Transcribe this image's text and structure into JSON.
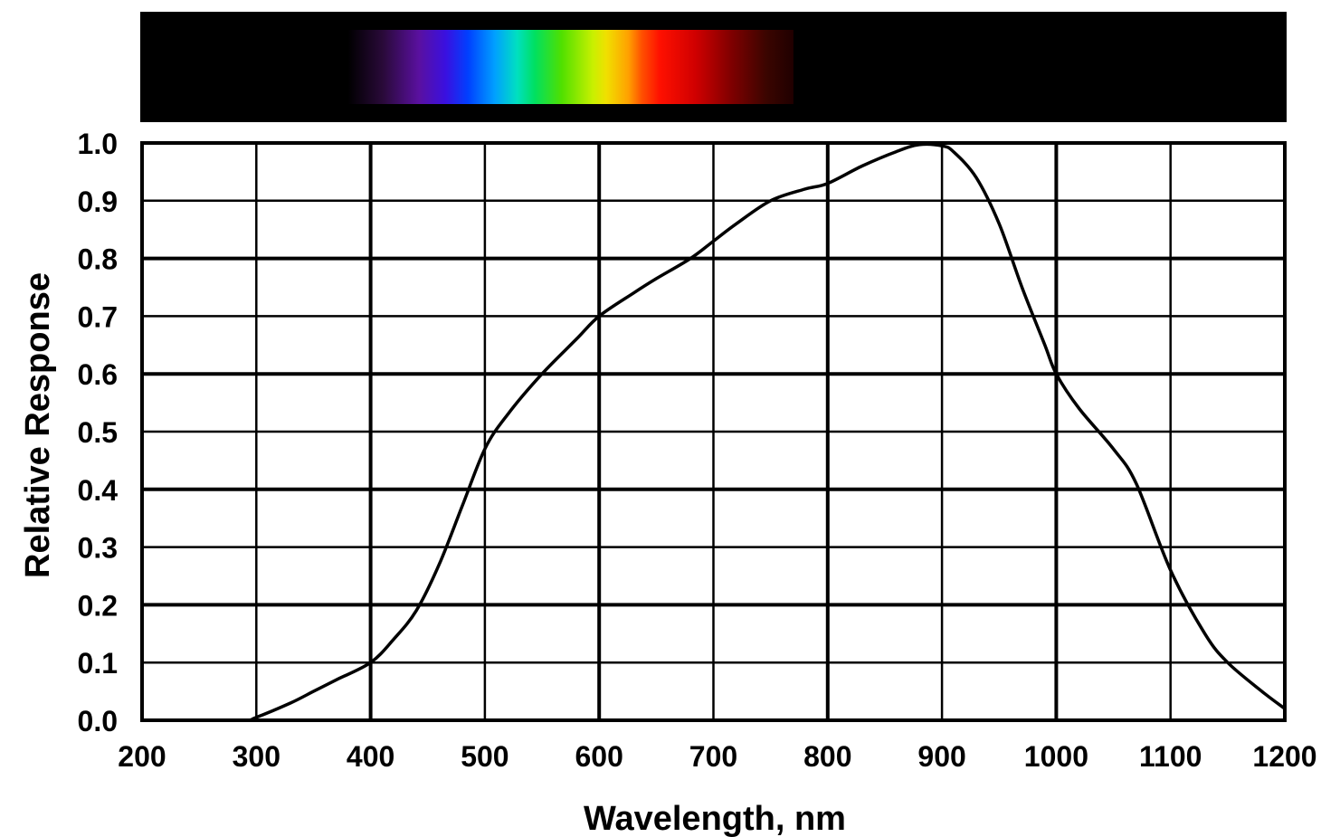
{
  "chart_data": {
    "type": "line",
    "title": "",
    "xlabel": "Wavelength, nm",
    "ylabel": "Relative Response",
    "xlim": [
      200,
      1200
    ],
    "ylim": [
      0.0,
      1.0
    ],
    "x_ticks": [
      200,
      300,
      400,
      500,
      600,
      700,
      800,
      900,
      1000,
      1100,
      1200
    ],
    "x_tick_labels": [
      "200",
      "300",
      "400",
      "500",
      "600",
      "700",
      "800",
      "900",
      "1000",
      "1100",
      "1200"
    ],
    "y_ticks": [
      0.0,
      0.1,
      0.2,
      0.3,
      0.4,
      0.5,
      0.6,
      0.7,
      0.8,
      0.9,
      1.0
    ],
    "y_tick_labels": [
      "0.0",
      "0.1",
      "0.2",
      "0.3",
      "0.4",
      "0.5",
      "0.6",
      "0.7",
      "0.8",
      "0.9",
      "1.0"
    ],
    "grid": true,
    "legend": "none",
    "line_color": "#000000",
    "grid_color": "#000000",
    "spectrum_band": {
      "background": "#000000",
      "spectrum_range_nm": [
        380,
        770
      ]
    },
    "series": [
      {
        "x": [
          200,
          250,
          290,
          300,
          330,
          350,
          370,
          400,
          420,
          440,
          460,
          480,
          500,
          520,
          550,
          580,
          600,
          630,
          650,
          680,
          700,
          720,
          750,
          780,
          800,
          830,
          860,
          880,
          900,
          910,
          930,
          950,
          970,
          990,
          1000,
          1020,
          1050,
          1070,
          1100,
          1130,
          1150,
          1180,
          1200
        ],
        "y": [
          0.0,
          0.0,
          0.0,
          0.005,
          0.03,
          0.05,
          0.07,
          0.1,
          0.14,
          0.19,
          0.27,
          0.37,
          0.47,
          0.53,
          0.6,
          0.66,
          0.7,
          0.74,
          0.765,
          0.8,
          0.83,
          0.86,
          0.9,
          0.92,
          0.93,
          0.96,
          0.985,
          0.997,
          0.995,
          0.985,
          0.94,
          0.86,
          0.75,
          0.65,
          0.6,
          0.54,
          0.47,
          0.41,
          0.26,
          0.15,
          0.1,
          0.05,
          0.02
        ]
      }
    ]
  }
}
